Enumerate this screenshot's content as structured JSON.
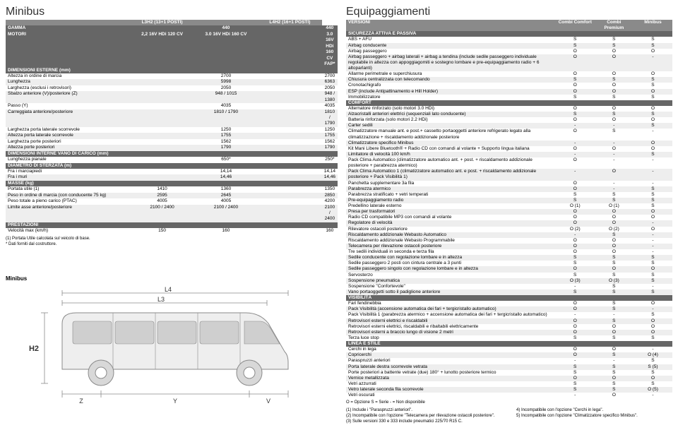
{
  "left": {
    "title": "Minibus",
    "headerCols": [
      "",
      "L3H2 (13+1 POSTI)",
      "",
      "L4H2 (16+1 POSTI)"
    ],
    "topRows": [
      {
        "label": "GAMMA",
        "vals": [
          "",
          "440",
          "",
          "440"
        ],
        "dark": true
      },
      {
        "label": "MOTORI",
        "vals": [
          "2,2 16V HDi 120 CV",
          "3.0 16V HDi 160 CV",
          "",
          "3.0 16V HDi 160 CV FAP*"
        ],
        "dark": true
      }
    ],
    "sections": [
      {
        "title": "DIMENSIONI ESTERNE (mm)",
        "rows": [
          {
            "l": "Altezza in ordine di marcia",
            "v": [
              "",
              "2700",
              "",
              "2700"
            ]
          },
          {
            "l": "Lunghezza",
            "v": [
              "",
              "5998",
              "",
              "6363"
            ]
          },
          {
            "l": "Larghezza (esclusi i retrovisori)",
            "v": [
              "",
              "2050",
              "",
              "2050"
            ]
          },
          {
            "l": "Sbalzo anteriore (V)/posteriore (Z)",
            "v": [
              "",
              "948 / 1015",
              "",
              "948 / 1380"
            ]
          },
          {
            "l": "Passo (Y)",
            "v": [
              "",
              "4035",
              "",
              "4035"
            ]
          },
          {
            "l": "Carreggiata anteriore/posteriore",
            "v": [
              "",
              "1810 / 1790",
              "",
              "1810 / 1790"
            ]
          },
          {
            "l": "Larghezza porta laterale scorrevole",
            "v": [
              "",
              "1250",
              "",
              "1250"
            ]
          },
          {
            "l": "Altezza porta laterale scorrevole",
            "v": [
              "",
              "1755",
              "",
              "1755"
            ]
          },
          {
            "l": "Larghezza porte posteriori",
            "v": [
              "",
              "1562",
              "",
              "1562"
            ]
          },
          {
            "l": "Altezza porte posteriori",
            "v": [
              "",
              "1790",
              "",
              "1790"
            ]
          }
        ]
      },
      {
        "title": "DIMENSIONI INTERNE VANO DI CARICO (mm)",
        "rows": [
          {
            "l": "Lunghezza pianale",
            "v": [
              "",
              "650*",
              "",
              "250*"
            ]
          }
        ]
      },
      {
        "title": "DIAMETRO DI STERZATA (m)",
        "rows": [
          {
            "l": "Fra i marciapiedi",
            "v": [
              "",
              "14,14",
              "",
              "14,14"
            ]
          },
          {
            "l": "Fra i muri",
            "v": [
              "",
              "14,46",
              "",
              "14,46"
            ]
          }
        ]
      },
      {
        "title": "MASSE (kg)",
        "rows": [
          {
            "l": "Portata utile (1)",
            "v": [
              "1410",
              "1360",
              "",
              "1350"
            ]
          },
          {
            "l": "Peso in ordine di marcia (con conducente 75 kg)",
            "v": [
              "2595",
              "2645",
              "",
              "2850"
            ]
          },
          {
            "l": "Peso totale a pieno carico (PTAC)",
            "v": [
              "4005",
              "4005",
              "",
              "4200"
            ]
          },
          {
            "l": "Limite asse anteriore/posteriore",
            "v": [
              "2100 / 2400",
              "2100 / 2400",
              "",
              "2100 / 2400"
            ]
          }
        ]
      },
      {
        "title": "PRESTAZIONI",
        "rows": [
          {
            "l": "Velocità max (km/h)",
            "v": [
              "150",
              "160",
              "",
              "160"
            ]
          }
        ]
      }
    ],
    "footnotes": [
      "(1) Portata Utile calcolata sul veicolo di base.",
      "* Dati forniti dal costruttore."
    ],
    "diagram": {
      "label": "Minibus",
      "dims": {
        "L4": "L4",
        "L3": "L3",
        "H2": "H2",
        "Z": "Z",
        "Y": "Y",
        "V": "V"
      },
      "colors": {
        "stroke": "#8a8a8a",
        "fill": "#d8d8d8",
        "text": "#333"
      }
    }
  },
  "right": {
    "title": "Equipaggiamenti",
    "cols": [
      "VERSIONI",
      "Combi Comfort",
      "Combi Premium",
      "Minibus"
    ],
    "sections": [
      {
        "title": "SICUREZZA ATTIVA E PASSIVA",
        "rows": [
          {
            "l": "ABS + AFU",
            "v": [
              "S",
              "S",
              "S"
            ]
          },
          {
            "l": "Airbag conducente",
            "v": [
              "S",
              "S",
              "S"
            ]
          },
          {
            "l": "Airbag passeggero",
            "v": [
              "O",
              "O",
              "O"
            ]
          },
          {
            "l": "Airbag passeggero + airbag laterali + airbag a tendina (include sedile passeggero individuale regolabile in altezza con appoggiagomiti e sostegno lombare e pre-equipaggiamento radio + 6 altoparlanti)",
            "v": [
              "O",
              "O",
              "-"
            ]
          },
          {
            "l": "Allarme perimetrale e superchiusura",
            "v": [
              "O",
              "O",
              "O"
            ]
          },
          {
            "l": "Chiusura centralizzata con telecomando",
            "v": [
              "S",
              "S",
              "S"
            ]
          },
          {
            "l": "Cronotachigrafo",
            "v": [
              "O",
              "O",
              "S"
            ]
          },
          {
            "l": "ESP (include Antipattinamento e Hill Holder)",
            "v": [
              "O",
              "O",
              "O"
            ]
          },
          {
            "l": "Immobilizzatore",
            "v": [
              "S",
              "S",
              "S"
            ]
          }
        ]
      },
      {
        "title": "COMFORT",
        "rows": [
          {
            "l": "Alternatore rinforzato (solo motori 3.0 HDi)",
            "v": [
              "O",
              "O",
              "O"
            ]
          },
          {
            "l": "Alzacristalli anteriori elettrici (sequenziali lato conducente)",
            "v": [
              "S",
              "S",
              "S"
            ]
          },
          {
            "l": "Batteria rinforzata (solo motori 2.2 HDi)",
            "v": [
              "O",
              "O",
              "O"
            ]
          },
          {
            "l": "Carter sedili",
            "v": [
              "-",
              "-",
              "S"
            ]
          },
          {
            "l": "Climatizzatore manuale ant. e post.+ cassetto portaoggetti anteriore refrigerato legato alla climatizzazione + riscaldamento addizionale posteriore",
            "v": [
              "O",
              "S",
              "-"
            ]
          },
          {
            "l": "Climatizzatore specifico Minibus",
            "v": [
              "-",
              "-",
              "O"
            ]
          },
          {
            "l": "Kit Mani Libere Bluetooth® + Radio CD con comandi al volante + Supporto lingua italiana",
            "v": [
              "O",
              "O",
              "O"
            ]
          },
          {
            "l": "Limitatore di velocità 100 km/h",
            "v": [
              "-",
              "-",
              "S"
            ]
          },
          {
            "l": "Pack Clima Automatico (climatizzatore automatico ant. + post. + riscaldamento addizionale posteriore + parabrezza atermico)",
            "v": [
              "O",
              "-",
              "-"
            ]
          },
          {
            "l": "Pack Clima Automatico 1 (climatizzatore automatico ant. e post. + riscaldamento addizionale posteriore + Pack Visibilità 1)",
            "v": [
              "-",
              "O",
              "-"
            ]
          },
          {
            "l": "Panchetta supplementare 3a fila",
            "v": [
              "O",
              "-",
              "-"
            ]
          },
          {
            "l": "Parabrezza atermico",
            "v": [
              "O",
              "-",
              "S"
            ]
          },
          {
            "l": "Parabrezza stratificato + vetri temperati",
            "v": [
              "S",
              "S",
              "S"
            ]
          },
          {
            "l": "Pre-equipaggiamento radio",
            "v": [
              "S",
              "S",
              "S"
            ]
          },
          {
            "l": "Predellino laterale esterno",
            "v": [
              "O (1)",
              "O (1)",
              "S"
            ]
          },
          {
            "l": "Presa per trasformatori",
            "v": [
              "O",
              "O",
              "O"
            ]
          },
          {
            "l": "Radio CD compatibile MP3 con comandi al volante",
            "v": [
              "O",
              "O",
              "O"
            ]
          },
          {
            "l": "Regolatore di velocità",
            "v": [
              "O",
              "O",
              "-"
            ]
          },
          {
            "l": "Rilevatore ostacoli posteriore",
            "v": [
              "O (2)",
              "O (2)",
              "O"
            ]
          },
          {
            "l": "Riscaldamento addizionale Webasto Automatico",
            "v": [
              "-",
              "S",
              "-"
            ]
          },
          {
            "l": "Riscaldamento addizionale Webasto Programmabile",
            "v": [
              "O",
              "O",
              "-"
            ]
          },
          {
            "l": "Telecamera per rilevazione ostacoli posteriore",
            "v": [
              "O",
              "O",
              "-"
            ]
          },
          {
            "l": "Tre sedili individuali in seconda e terza fila",
            "v": [
              "O",
              "O",
              "-"
            ]
          },
          {
            "l": "Sedile conducente con regolazione lombare e in altezza",
            "v": [
              "S",
              "S",
              "S"
            ]
          },
          {
            "l": "Sedile passeggero 2 posti con cintura centrale a 3 punti",
            "v": [
              "S",
              "S",
              "S"
            ]
          },
          {
            "l": "Sedile passeggero singolo con regolazione lombare e in altezza",
            "v": [
              "O",
              "O",
              "O"
            ]
          },
          {
            "l": "Servosterzo",
            "v": [
              "S",
              "S",
              "S"
            ]
          },
          {
            "l": "Sospensione pneumatica",
            "v": [
              "O (3)",
              "O (3)",
              "S"
            ]
          },
          {
            "l": "Sospensione \"Confortevole\"",
            "v": [
              "-",
              "S",
              "-"
            ]
          },
          {
            "l": "Vano portaoggetti sotto il padiglione anteriore",
            "v": [
              "S",
              "S",
              "S"
            ]
          }
        ]
      },
      {
        "title": "VISIBILITÀ",
        "rows": [
          {
            "l": "Fari fendinebbia",
            "v": [
              "O",
              "S",
              "O"
            ]
          },
          {
            "l": "Pack Visibilità (accensione automatica dei fari + tergicristallo automatico)",
            "v": [
              "O",
              "S",
              "-"
            ]
          },
          {
            "l": "Pack Visibilità 1 (parabrezza atermico + accensione automatica dei fari + tergicristallo automatico)",
            "v": [
              "-",
              "-",
              "S"
            ]
          },
          {
            "l": "Retrovisori esterni elettrici e riscaldabili",
            "v": [
              "O",
              "S",
              "O"
            ]
          },
          {
            "l": "Retrovisori esterni elettrici, riscaldabili e ribaltabili elettricamente",
            "v": [
              "O",
              "O",
              "O"
            ]
          },
          {
            "l": "Retrovisori esterni a braccio lungo di visione 2 metri",
            "v": [
              "O",
              "O",
              "O"
            ]
          },
          {
            "l": "Terza luce stop",
            "v": [
              "S",
              "S",
              "S"
            ]
          }
        ]
      },
      {
        "title": "LINEA E STILE",
        "rows": [
          {
            "l": "Cerchi in lega",
            "v": [
              "O",
              "O",
              "-"
            ]
          },
          {
            "l": "Copricerchi",
            "v": [
              "O",
              "S",
              "O (4)"
            ]
          },
          {
            "l": "Paraspruzzi anteriori",
            "v": [
              "-",
              "-",
              "S"
            ]
          },
          {
            "l": "Porta laterale destra scorrevole vetrata",
            "v": [
              "S",
              "S",
              "S (5)"
            ]
          },
          {
            "l": "Porte posteriori a battente vetrate (due) 180° + lunotto posteriore termico",
            "v": [
              "S",
              "S",
              "S"
            ]
          },
          {
            "l": "Vernice metallizzata",
            "v": [
              "O",
              "O",
              "O"
            ]
          },
          {
            "l": "Vetri azzurrati",
            "v": [
              "S",
              "S",
              "S"
            ]
          },
          {
            "l": "Vetro laterale seconda fila scorrevole",
            "v": [
              "S",
              "S",
              "O (5)"
            ]
          },
          {
            "l": "Vetri oscurati",
            "v": [
              "-",
              "O",
              "-"
            ]
          }
        ]
      }
    ],
    "legend": "O = Opzione   S = Serie   - = Non disponibile",
    "footnotes": [
      "(1) Include i \"Paraspruzzi anteriori\".",
      "(2) Incompatibile con l'opzione \"Telecamera per rilevazione ostacoli posteriore\".",
      "(3) Sulle versioni 330 e 333 include pneumatici 225/70 R15 C.",
      "4) Incompatibile con l'opzione \"Cerchi in lega\".",
      "5) Incompatibile con l'opzione \"Climatizzatore specifico Minibus\"."
    ]
  }
}
